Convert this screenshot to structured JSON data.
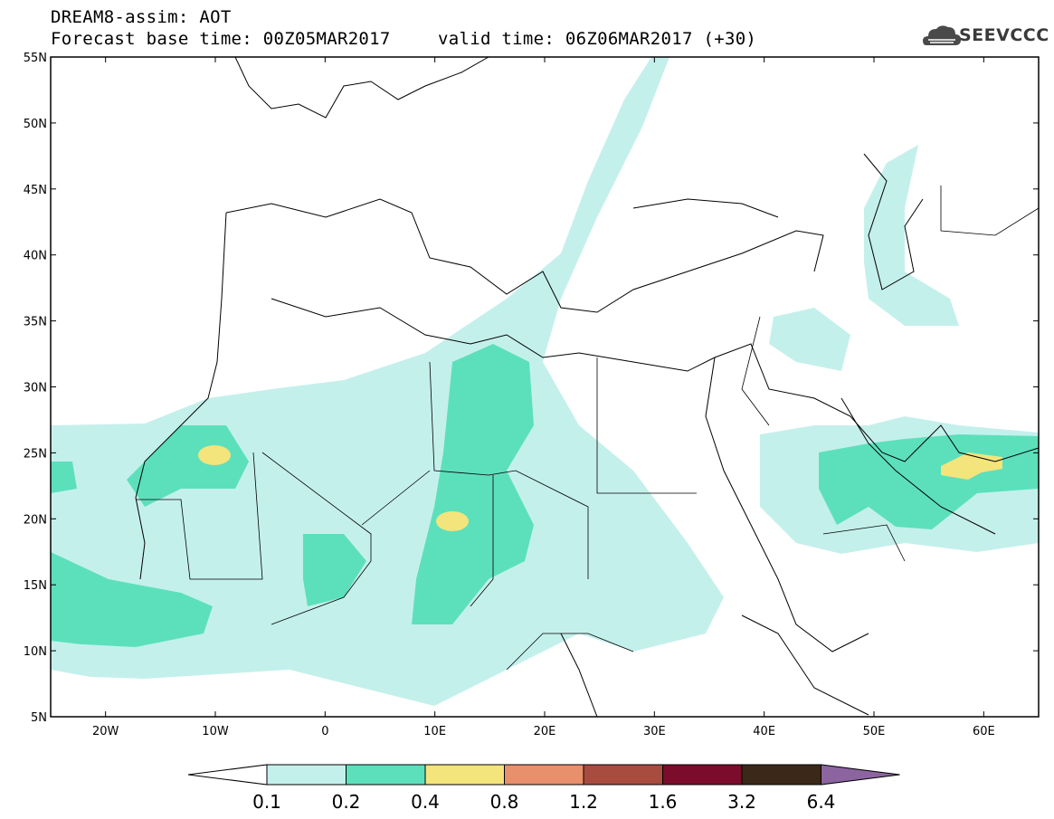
{
  "header": {
    "title": "DREAM8-assim: AOT",
    "base_time": "Forecast base time: 00Z05MAR2017",
    "valid_time": "valid time: 06Z06MAR2017 (+30)"
  },
  "logo": {
    "text": "SEEVCCC",
    "icon": "cloud-icon"
  },
  "map": {
    "lat_ticks": [
      "55N",
      "50N",
      "45N",
      "40N",
      "35N",
      "30N",
      "25N",
      "20N",
      "15N",
      "10N",
      "5N"
    ],
    "lon_ticks": [
      "20W",
      "10W",
      "0",
      "10E",
      "20E",
      "30E",
      "40E",
      "50E",
      "60E"
    ],
    "lon_range": [
      -25,
      65
    ],
    "lat_range": [
      5,
      55
    ]
  },
  "colorbar": {
    "levels": [
      "0.1",
      "0.2",
      "0.4",
      "0.8",
      "1.2",
      "1.6",
      "3.2",
      "6.4"
    ],
    "colors": [
      "#ffffff",
      "#c4f0ec",
      "#5ce0bc",
      "#f4e47c",
      "#e8906c",
      "#a84c40",
      "#7c0c2c",
      "#3c2818",
      "#8c64a0"
    ]
  },
  "aot_colors": {
    "low": "#c4f0ec",
    "mid": "#5ce0bc",
    "high": "#f4e47c"
  }
}
